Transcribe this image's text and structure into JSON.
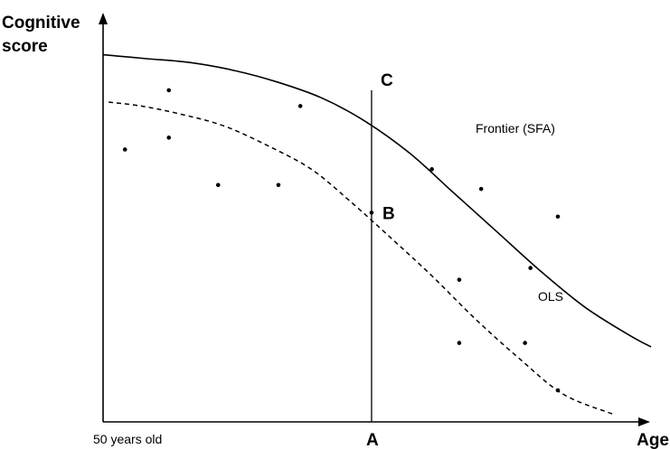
{
  "axes": {
    "y_label_line1": "Cognitive",
    "y_label_line2": "score",
    "x_label": "Age",
    "x_origin_label": "50 years old"
  },
  "labels": {
    "point_a": "A",
    "point_b": "B",
    "point_c": "C",
    "frontier": "Frontier (SFA)",
    "ols": "OLS"
  },
  "chart_data": {
    "type": "scatter",
    "series": [
      {
        "name": "Frontier (SFA)",
        "style": "solid",
        "points": [
          [
            0.0,
            0.93
          ],
          [
            0.08,
            0.92
          ],
          [
            0.16,
            0.91
          ],
          [
            0.24,
            0.89
          ],
          [
            0.32,
            0.86
          ],
          [
            0.4,
            0.82
          ],
          [
            0.48,
            0.76
          ],
          [
            0.56,
            0.68
          ],
          [
            0.64,
            0.58
          ],
          [
            0.72,
            0.48
          ],
          [
            0.8,
            0.38
          ],
          [
            0.88,
            0.29
          ],
          [
            0.96,
            0.22
          ],
          [
            1.0,
            0.19
          ]
        ]
      },
      {
        "name": "OLS",
        "style": "dashed",
        "points": [
          [
            0.01,
            0.81
          ],
          [
            0.07,
            0.8
          ],
          [
            0.14,
            0.78
          ],
          [
            0.22,
            0.75
          ],
          [
            0.3,
            0.7
          ],
          [
            0.38,
            0.64
          ],
          [
            0.45,
            0.56
          ],
          [
            0.53,
            0.46
          ],
          [
            0.6,
            0.37
          ],
          [
            0.68,
            0.26
          ],
          [
            0.76,
            0.16
          ],
          [
            0.84,
            0.07
          ],
          [
            0.93,
            0.02
          ]
        ]
      }
    ],
    "observations": [
      [
        0.04,
        0.69
      ],
      [
        0.12,
        0.72
      ],
      [
        0.12,
        0.84
      ],
      [
        0.21,
        0.6
      ],
      [
        0.32,
        0.6
      ],
      [
        0.36,
        0.8
      ],
      [
        0.49,
        0.53
      ],
      [
        0.6,
        0.64
      ],
      [
        0.65,
        0.36
      ],
      [
        0.65,
        0.2
      ],
      [
        0.69,
        0.59
      ],
      [
        0.77,
        0.2
      ],
      [
        0.78,
        0.39
      ],
      [
        0.83,
        0.52
      ],
      [
        0.83,
        0.08
      ]
    ],
    "marker_x": 0.49,
    "point_c_y": 0.84,
    "point_b_y": 0.53,
    "xlim": [
      0,
      1
    ],
    "ylim": [
      0,
      1
    ]
  }
}
